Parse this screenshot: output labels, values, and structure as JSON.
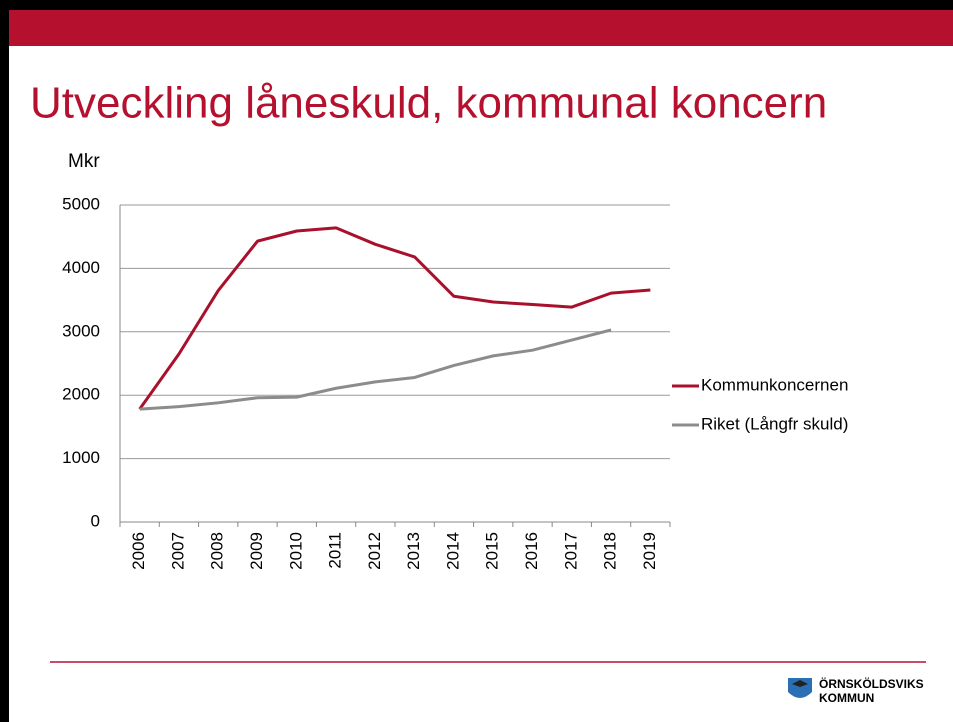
{
  "chart_data": {
    "type": "line",
    "title": "Utveckling låneskuld, kommunal koncern",
    "ylabel": "Mkr",
    "categories": [
      "2006",
      "2007",
      "2008",
      "2009",
      "2010",
      "2011",
      "2012",
      "2013",
      "2014",
      "2015",
      "2016",
      "2017",
      "2018",
      "2019"
    ],
    "series": [
      {
        "name": "Kommunkoncernen",
        "color": "#a8102c",
        "values": [
          1780,
          2650,
          3650,
          4430,
          4590,
          4640,
          4380,
          4180,
          3560,
          3470,
          3430,
          3390,
          3610,
          3660
        ]
      },
      {
        "name": "Riket (Långfr skuld)",
        "color": "#8c8c8c",
        "values": [
          1780,
          1820,
          1880,
          1960,
          1970,
          2110,
          2210,
          2280,
          2470,
          2620,
          2710,
          2870,
          3030,
          null
        ]
      }
    ],
    "ylim": [
      0,
      5000
    ],
    "yticks": [
      0,
      1000,
      2000,
      3000,
      4000,
      5000
    ],
    "grid": true,
    "legend": "right"
  },
  "logo": {
    "lines": [
      "ÖRNSKÖLDSVIKS",
      "KOMMUN"
    ]
  }
}
